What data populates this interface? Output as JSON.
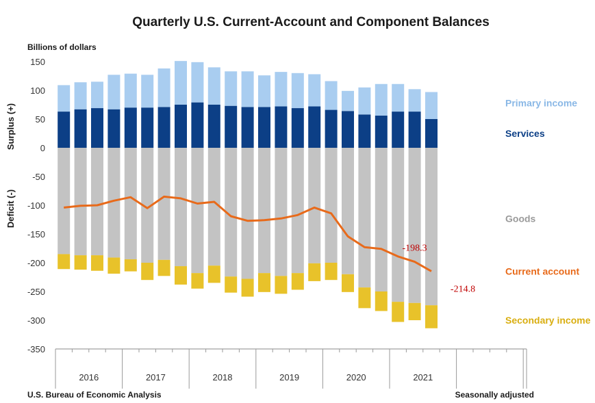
{
  "chart_data": {
    "type": "bar",
    "title": "Quarterly U.S. Current-Account and Component Balances",
    "unit_label": "Billions of dollars",
    "ylabel_positive": "Surplus (+)",
    "ylabel_negative": "Deficit (-)",
    "ylim": [
      -350,
      150
    ],
    "yticks": [
      150,
      100,
      50,
      0,
      -50,
      -100,
      -150,
      -200,
      -250,
      -300,
      -350
    ],
    "years": [
      "2016",
      "2017",
      "2018",
      "2019",
      "2020",
      "2021"
    ],
    "quarters_per_year": 4,
    "stacked": true,
    "series": [
      {
        "name": "Services",
        "color": "#0c3f86",
        "values": [
          63,
          67,
          69,
          67,
          70,
          70,
          71,
          75,
          79,
          75,
          73,
          71,
          71,
          72,
          69,
          72,
          66,
          64,
          58,
          56,
          63,
          63,
          50
        ]
      },
      {
        "name": "Primary income",
        "color": "#a9cdf0",
        "values": [
          46,
          47,
          46,
          60,
          59,
          57,
          67,
          76,
          70,
          65,
          60,
          62,
          55,
          60,
          61,
          56,
          50,
          35,
          47,
          55,
          48,
          39,
          47
        ]
      },
      {
        "name": "Goods",
        "color": "#c3c3c3",
        "values": [
          -185,
          -187,
          -187,
          -191,
          -194,
          -200,
          -195,
          -206,
          -218,
          -205,
          -224,
          -228,
          -218,
          -223,
          -218,
          -201,
          -200,
          -220,
          -243,
          -250,
          -268,
          -270,
          -274
        ]
      },
      {
        "name": "Secondary income",
        "color": "#e8c22a",
        "values": [
          -26,
          -25,
          -27,
          -28,
          -21,
          -30,
          -28,
          -32,
          -27,
          -30,
          -28,
          -31,
          -33,
          -31,
          -29,
          -31,
          -30,
          -31,
          -36,
          -34,
          -35,
          -30,
          -40
        ]
      },
      {
        "name": "Current account",
        "type": "line",
        "color": "#e86a1a",
        "values": [
          -104,
          -101,
          -100,
          -92,
          -86,
          -105,
          -85,
          -88,
          -97,
          -94,
          -119,
          -127,
          -126,
          -123,
          -117,
          -104,
          -114,
          -154,
          -173,
          -176,
          -189,
          -198.3,
          -214.8
        ]
      }
    ],
    "annotations": [
      {
        "text": "-198.3",
        "series": "Current account",
        "index": 21,
        "color": "#c00000"
      },
      {
        "text": "-214.8",
        "series": "Current account",
        "index": 22,
        "color": "#c00000"
      }
    ],
    "legend_placement": "right",
    "grid": false
  },
  "footer": {
    "source": "U.S. Bureau of Economic Analysis",
    "note": "Seasonally adjusted"
  }
}
